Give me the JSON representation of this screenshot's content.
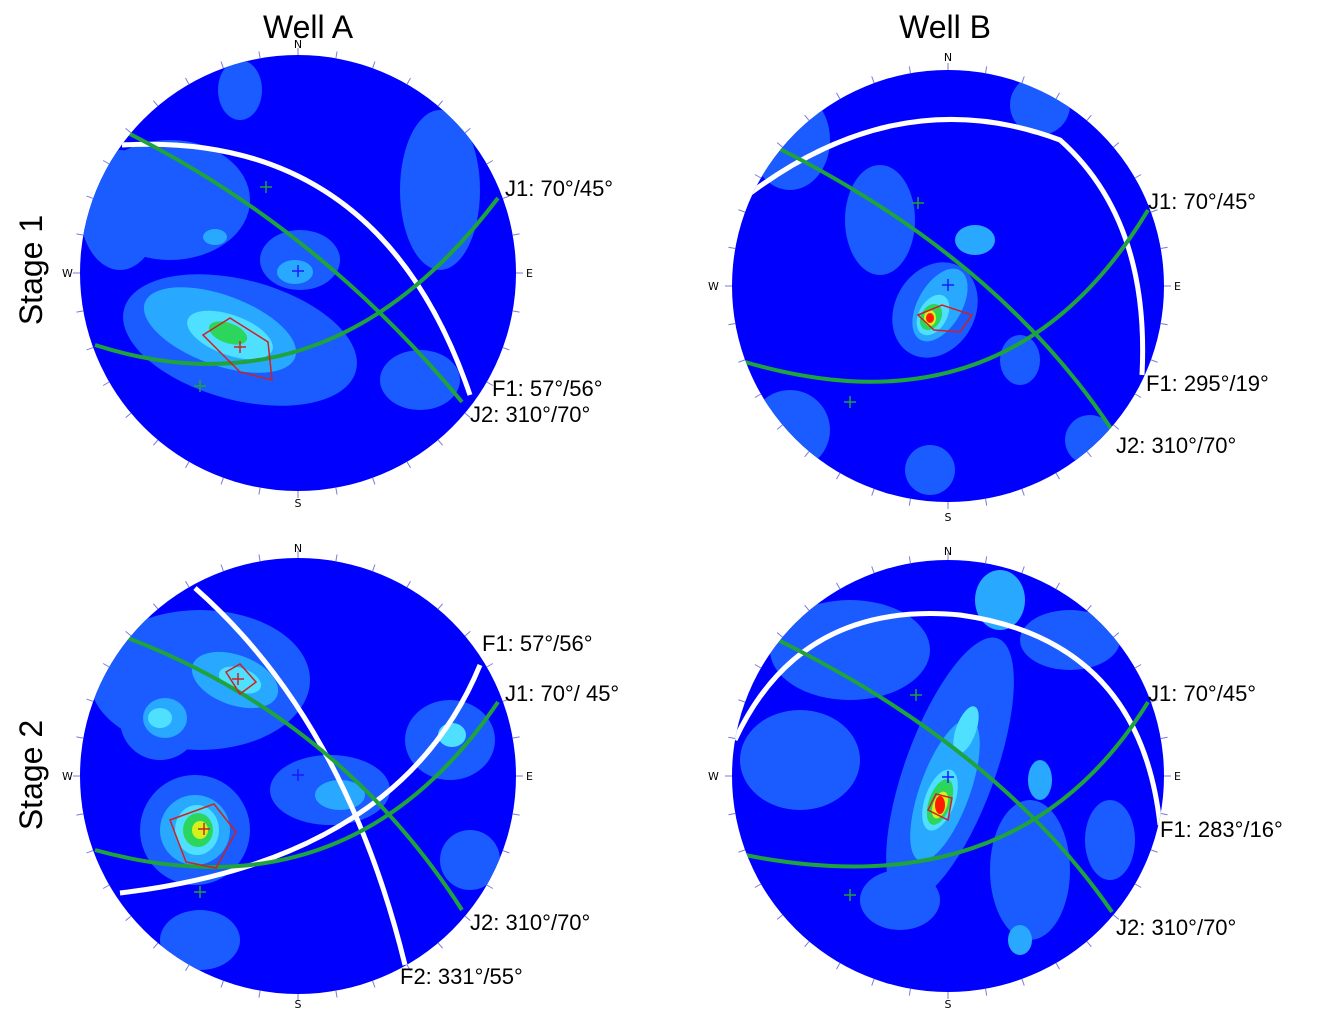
{
  "columns": [
    "Well A",
    "Well B"
  ],
  "rows": [
    "Stage 1",
    "Stage 2"
  ],
  "compass": {
    "n": "N",
    "s": "S",
    "e": "E",
    "w": "W"
  },
  "colors": {
    "background": "#0000ff",
    "contour_low": "#1a5cff",
    "contour_mid": "#29a8ff",
    "contour_cyan": "#4fe0ff",
    "contour_green": "#2cd65c",
    "contour_yellow": "#d6f01a",
    "contour_red": "#ff1a00",
    "fault_plane": "#ffffff",
    "joint_plane": "#1fa33c",
    "window": "#cc2222"
  },
  "plots": {
    "a1": {
      "well": "Well A",
      "stage": "Stage 1",
      "labels": {
        "j1": "J1: 70°/45°",
        "f1": "F1: 57°/56°",
        "j2": "J2: 310°/70°"
      }
    },
    "b1": {
      "well": "Well B",
      "stage": "Stage 1",
      "labels": {
        "j1": "J1: 70°/45°",
        "f1": "F1: 295°/19°",
        "j2": "J2: 310°/70°"
      }
    },
    "a2": {
      "well": "Well A",
      "stage": "Stage 2",
      "labels": {
        "f1": "F1: 57°/56°",
        "j1": "J1: 70°/ 45°",
        "j2": "J2: 310°/70°",
        "f2": "F2: 331°/55°"
      }
    },
    "b2": {
      "well": "Well B",
      "stage": "Stage 2",
      "labels": {
        "j1": "J1: 70°/45°",
        "f1": "F1: 283°/16°",
        "j2": "J2: 310°/70°"
      }
    }
  }
}
